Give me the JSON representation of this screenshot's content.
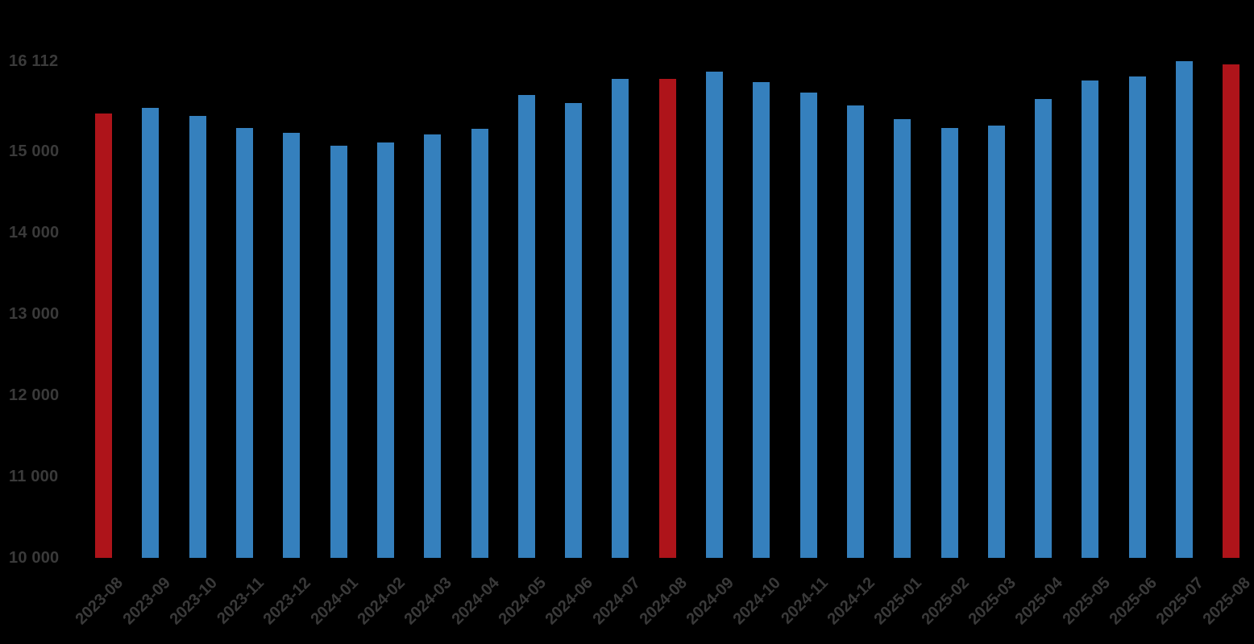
{
  "canvas": {
    "background": "#000000"
  },
  "chart_data": {
    "type": "bar",
    "categories": [
      "2023-08",
      "2023-09",
      "2023-10",
      "2023-11",
      "2023-12",
      "2024-01",
      "2024-02",
      "2024-03",
      "2024-04",
      "2024-05",
      "2024-06",
      "2024-07",
      "2024-08",
      "2024-09",
      "2024-10",
      "2024-11",
      "2024-12",
      "2025-01",
      "2025-02",
      "2025-03",
      "2025-04",
      "2025-05",
      "2025-06",
      "2025-07",
      "2025-08"
    ],
    "values": [
      15470,
      15540,
      15440,
      15290,
      15230,
      15070,
      15110,
      15210,
      15275,
      15695,
      15600,
      15890,
      15890,
      15980,
      15850,
      15730,
      15570,
      15395,
      15290,
      15315,
      15650,
      15870,
      15920,
      16112,
      16070
    ],
    "highlighted_categories": [
      "2023-08",
      "2024-08",
      "2025-08"
    ],
    "colors": {
      "bar": "#3580BD",
      "highlight": "#AE141A",
      "tick_text": "#3A3A3A"
    },
    "ylim": [
      10000,
      16112
    ],
    "yticks": [
      10000,
      11000,
      12000,
      13000,
      14000,
      15000,
      16112
    ],
    "ytick_labels": [
      "10 000",
      "11 000",
      "12 000",
      "13 000",
      "14 000",
      "15 000",
      "16 112"
    ],
    "x_tick_rotation_deg": 45,
    "grid": false,
    "legend": false,
    "title": ""
  }
}
